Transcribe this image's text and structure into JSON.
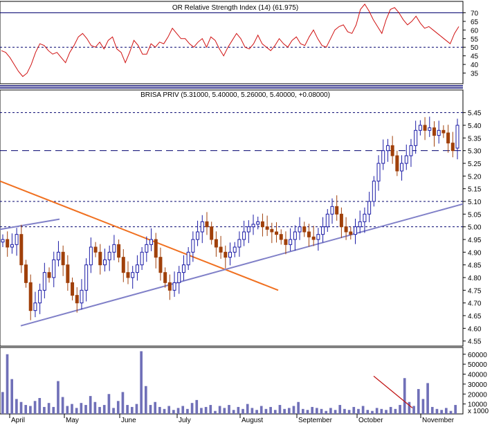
{
  "window": {
    "rsi_title": "OR Relative Strength Index (14) (61.975)",
    "price_title": "BRISA PRIV (5.31000, 5.40000, 5.26000, 5.40000, +0.08000)",
    "volume_scale_label": "x 1000"
  },
  "colors": {
    "up_candle": "#1a1aa6",
    "down_candle": "#a0400a",
    "rsi_line": "#d01010",
    "trend_orange": "#f07020",
    "trend_lavender": "#8080c8",
    "guide_navy": "#00006e",
    "volume_bar": "#7070b8",
    "volume_trend": "#c01010"
  },
  "chart_data": [
    {
      "type": "line",
      "name": "rsi-panel",
      "title": "OR Relative Strength Index (14) (61.975)",
      "ylim": [
        30,
        75
      ],
      "y_ticks": [
        35,
        40,
        45,
        50,
        55,
        60,
        65,
        70
      ],
      "reference_levels": [
        50,
        70
      ],
      "last_value": 61.975,
      "series": [
        {
          "values": [
            48,
            47,
            44,
            40,
            36,
            33,
            35,
            40,
            47,
            52,
            51,
            48,
            46,
            47,
            44,
            41,
            47,
            51,
            56,
            58,
            55,
            51,
            50,
            53,
            49,
            54,
            56,
            49,
            47,
            41,
            47,
            54,
            51,
            46,
            46,
            52,
            50,
            53,
            52,
            56,
            61,
            58,
            55,
            55,
            52,
            50,
            53,
            55,
            50,
            56,
            54,
            49,
            45,
            50,
            54,
            58,
            55,
            50,
            49,
            52,
            57,
            52,
            50,
            48,
            51,
            55,
            52,
            50,
            54,
            56,
            52,
            51,
            56,
            60,
            55,
            51,
            50,
            55,
            60,
            62,
            63,
            59,
            58,
            63,
            72,
            75,
            71,
            66,
            62,
            58,
            66,
            72,
            73,
            70,
            66,
            63,
            65,
            68,
            64,
            61,
            62,
            60,
            58,
            56,
            54,
            52,
            58,
            61.975
          ]
        }
      ]
    },
    {
      "type": "candlestick",
      "name": "price-panel",
      "title": "BRISA PRIV (5.31000, 5.40000, 5.26000, 5.40000, +0.08000)",
      "ylim": [
        4.53,
        5.49
      ],
      "y_ticks": [
        4.55,
        4.6,
        4.65,
        4.7,
        4.75,
        4.8,
        4.85,
        4.9,
        4.95,
        5.0,
        5.05,
        5.1,
        5.15,
        5.2,
        5.25,
        5.3,
        5.35,
        5.4,
        5.45
      ],
      "reference_levels": [
        5.45,
        5.3,
        5.1,
        5.0
      ],
      "last_ohlc": [
        5.31,
        5.4,
        5.26,
        5.4
      ],
      "closes": [
        4.95,
        4.92,
        4.93,
        4.97,
        4.85,
        4.78,
        4.67,
        4.7,
        4.75,
        4.82,
        4.8,
        4.87,
        4.9,
        4.85,
        4.78,
        4.73,
        4.7,
        4.75,
        4.85,
        4.92,
        4.9,
        4.85,
        4.87,
        4.9,
        4.93,
        4.88,
        4.82,
        4.8,
        4.82,
        4.85,
        4.9,
        4.93,
        4.95,
        4.88,
        4.82,
        4.78,
        4.75,
        4.78,
        4.82,
        4.85,
        4.9,
        4.95,
        4.98,
        5.02,
        5.0,
        4.95,
        4.92,
        4.9,
        4.88,
        4.9,
        4.92,
        4.95,
        4.98,
        5.0,
        5.01,
        5.02,
        5.0,
        4.99,
        4.98,
        4.97,
        4.95,
        4.93,
        4.95,
        4.98,
        5.0,
        4.98,
        4.96,
        4.95,
        4.97,
        5.0,
        5.05,
        5.08,
        5.05,
        5.0,
        4.98,
        4.97,
        5.0,
        5.02,
        5.05,
        5.1,
        5.18,
        5.25,
        5.3,
        5.32,
        5.28,
        5.22,
        5.25,
        5.28,
        5.32,
        5.38,
        5.4,
        5.38,
        5.39,
        5.36,
        5.38,
        5.37,
        5.33,
        5.3,
        5.4
      ],
      "annotations": [
        {
          "kind": "trendline",
          "color": "orange",
          "from": [
            "Mar",
            "5.18"
          ],
          "to": [
            "Aug",
            "4.75"
          ]
        },
        {
          "kind": "trendline",
          "color": "lavender",
          "from": [
            "Apr",
            "4.61"
          ],
          "to": [
            "Nov",
            "5.09"
          ]
        },
        {
          "kind": "trendline",
          "color": "lavender",
          "from": [
            "Mar",
            "4.99"
          ],
          "to": [
            "Apr",
            "5.03"
          ]
        }
      ]
    },
    {
      "type": "bar",
      "name": "volume-panel",
      "ylabel": "x 1000",
      "y_ticks": [
        10000,
        20000,
        30000,
        40000,
        50000,
        60000
      ],
      "ylim": [
        0,
        64000
      ],
      "values": [
        22000,
        60000,
        35000,
        15000,
        12000,
        9000,
        8000,
        13000,
        16000,
        7000,
        11000,
        7000,
        33000,
        17000,
        8000,
        10000,
        6000,
        11000,
        9000,
        18000,
        12000,
        7000,
        9000,
        20000,
        6000,
        13000,
        22000,
        9000,
        7000,
        10000,
        63000,
        28000,
        9000,
        12000,
        7000,
        5000,
        8000,
        4000,
        6000,
        8000,
        5000,
        11000,
        14000,
        6000,
        7000,
        9000,
        3000,
        8000,
        6000,
        9000,
        4000,
        7000,
        5000,
        10000,
        6000,
        4000,
        8000,
        5000,
        7000,
        4000,
        9000,
        5000,
        6000,
        8000,
        12000,
        5000,
        4000,
        7000,
        6000,
        5000,
        3000,
        6000,
        4000,
        9000,
        5000,
        4000,
        7000,
        5000,
        8000,
        4000,
        3000,
        6000,
        5000,
        4000,
        7000,
        5000,
        9000,
        36000,
        12000,
        8000,
        25000,
        15000,
        31000,
        7000,
        5000,
        4000,
        6000,
        3000,
        9000
      ]
    }
  ],
  "x_axis": {
    "months": [
      "April",
      "May",
      "June",
      "July",
      "August",
      "September",
      "October",
      "November"
    ]
  }
}
